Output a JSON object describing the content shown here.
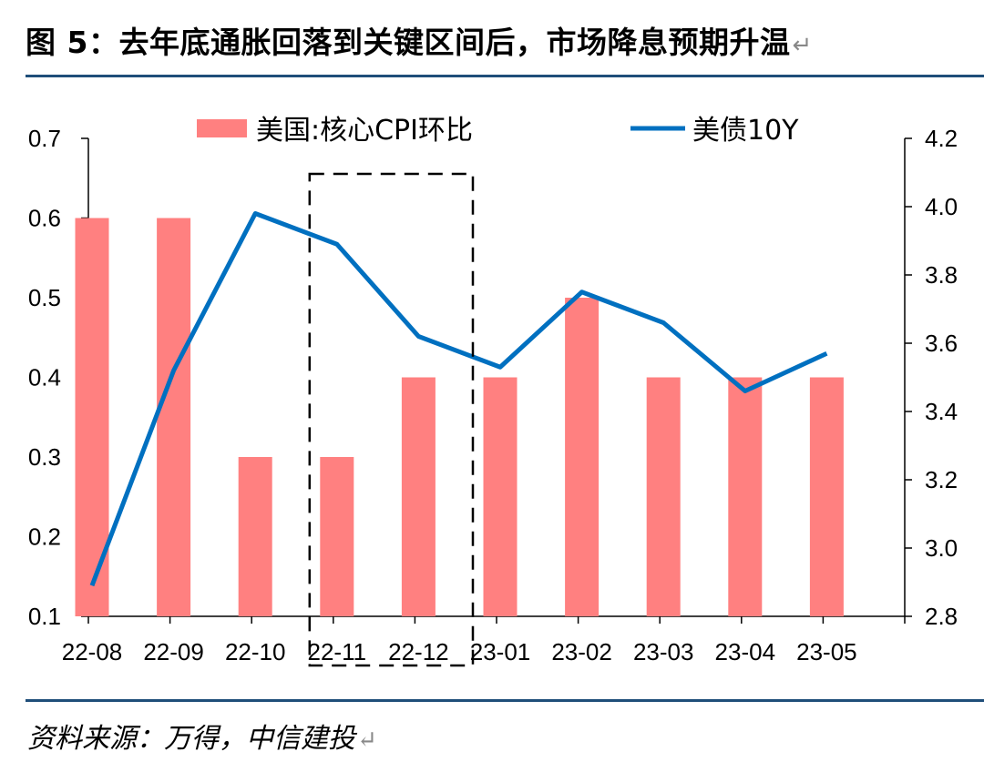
{
  "title": "图 5：去年底通胀回落到关键区间后，市场降息预期升温",
  "return_mark": "↵",
  "source": "资料来源：万得，中信建投",
  "chart_data": {
    "type": "bar+line",
    "categories": [
      "22-08",
      "22-09",
      "22-10",
      "22-11",
      "22-12",
      "23-01",
      "23-02",
      "23-03",
      "23-04",
      "23-05"
    ],
    "series": [
      {
        "name": "美国:核心CPI环比",
        "type": "bar",
        "axis": "left",
        "color": "#ff8080",
        "values": [
          0.6,
          0.6,
          0.3,
          0.3,
          0.4,
          0.4,
          0.5,
          0.4,
          0.4,
          0.4
        ]
      },
      {
        "name": "美债10Y",
        "type": "line",
        "axis": "right",
        "color": "#0070c0",
        "values": [
          2.89,
          3.52,
          3.98,
          3.89,
          3.62,
          3.53,
          3.75,
          3.66,
          3.46,
          3.57
        ]
      }
    ],
    "left_axis": {
      "min": 0.1,
      "max": 0.7,
      "ticks": [
        "0.1",
        "0.2",
        "0.3",
        "0.4",
        "0.5",
        "0.6",
        "0.7"
      ]
    },
    "right_axis": {
      "min": 2.8,
      "max": 4.2,
      "ticks": [
        "2.8",
        "3.0",
        "3.2",
        "3.4",
        "3.6",
        "3.8",
        "4.0",
        "4.2"
      ]
    },
    "highlight_range": [
      "22-11",
      "22-12"
    ],
    "legend_position": "top"
  }
}
